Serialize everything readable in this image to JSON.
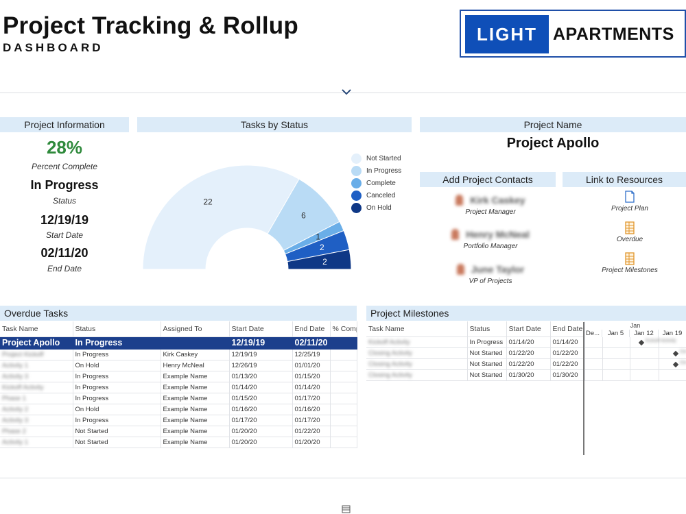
{
  "header": {
    "title": "Project Tracking & Rollup",
    "subtitle": "DASHBOARD",
    "logo_left": "LIGHT",
    "logo_right": "APARTMENTS"
  },
  "project_info": {
    "heading": "Project Information",
    "percent": "28%",
    "percent_label": "Percent Complete",
    "status": "In Progress",
    "status_label": "Status",
    "start_date": "12/19/19",
    "start_label": "Start Date",
    "end_date": "02/11/20",
    "end_label": "End Date"
  },
  "chart_data": {
    "type": "pie",
    "title": "Tasks by Status",
    "shape": "half-donut",
    "categories": [
      "Not Started",
      "In Progress",
      "Complete",
      "Canceled",
      "On Hold"
    ],
    "values": [
      22,
      6,
      1,
      2,
      2
    ],
    "colors": [
      "#e4f0fb",
      "#b9dbf5",
      "#6aaee8",
      "#1f5fc4",
      "#0f3886"
    ],
    "legend_position": "right"
  },
  "project_name": {
    "heading": "Project Name",
    "value": "Project Apollo"
  },
  "contacts": {
    "heading": "Add Project Contacts",
    "items": [
      {
        "name": "Kirk Caskey",
        "role": "Project Manager"
      },
      {
        "name": "Henry McNeal",
        "role": "Portfolio Manager"
      },
      {
        "name": "June Taylor",
        "role": "VP of Projects"
      }
    ]
  },
  "resources": {
    "heading": "Link to Resources",
    "items": [
      {
        "label": "Project Plan",
        "icon": "document-icon"
      },
      {
        "label": "Overdue",
        "icon": "spreadsheet-icon"
      },
      {
        "label": "Project Milestones",
        "icon": "spreadsheet-icon"
      }
    ]
  },
  "overdue": {
    "heading": "Overdue Tasks",
    "columns": [
      "Task Name",
      "Status",
      "Assigned To",
      "Start Date",
      "End Date",
      "% Comp"
    ],
    "summary": {
      "task": "Project Apollo",
      "status": "In Progress",
      "assigned": "",
      "start": "12/19/19",
      "end": "02/11/20"
    },
    "rows": [
      {
        "task": "Project Kickoff",
        "status": "In Progress",
        "assigned": "Kirk Caskey",
        "start": "12/19/19",
        "end": "12/25/19"
      },
      {
        "task": "Activity 1",
        "status": "On Hold",
        "assigned": "Henry McNeal",
        "start": "12/26/19",
        "end": "01/01/20"
      },
      {
        "task": "Activity 3",
        "status": "In Progress",
        "assigned": "Example Name",
        "start": "01/13/20",
        "end": "01/15/20"
      },
      {
        "task": "Kickoff Activity",
        "status": "In Progress",
        "assigned": "Example Name",
        "start": "01/14/20",
        "end": "01/14/20"
      },
      {
        "task": "Phase 1",
        "status": "In Progress",
        "assigned": "Example Name",
        "start": "01/15/20",
        "end": "01/17/20"
      },
      {
        "task": "Activity 2",
        "status": "On Hold",
        "assigned": "Example Name",
        "start": "01/16/20",
        "end": "01/16/20"
      },
      {
        "task": "Activity 3",
        "status": "In Progress",
        "assigned": "Example Name",
        "start": "01/17/20",
        "end": "01/17/20"
      },
      {
        "task": "Phase 2",
        "status": "Not Started",
        "assigned": "Example Name",
        "start": "01/20/20",
        "end": "01/22/20"
      },
      {
        "task": "Activity 1",
        "status": "Not Started",
        "assigned": "Example Name",
        "start": "01/20/20",
        "end": "01/20/20"
      }
    ]
  },
  "milestones": {
    "heading": "Project Milestones",
    "columns": [
      "Task Name",
      "Status",
      "Start Date",
      "End Date"
    ],
    "gantt_month": "Jan",
    "gantt_weeks": [
      "De...",
      "Jan 5",
      "Jan 12",
      "Jan 19"
    ],
    "rows": [
      {
        "task": "Kickoff Activity",
        "status": "In Progress",
        "start": "01/14/20",
        "end": "01/14/20",
        "bar_label": "Kickoff Activity"
      },
      {
        "task": "Closing Activity",
        "status": "Not Started",
        "start": "01/22/20",
        "end": "01/22/20",
        "bar_label": "Closing Activity"
      },
      {
        "task": "Closing Activity",
        "status": "Not Started",
        "start": "01/22/20",
        "end": "01/22/20",
        "bar_label": "Closing Activity"
      },
      {
        "task": "Closing Activity",
        "status": "Not Started",
        "start": "01/30/20",
        "end": "01/30/20",
        "bar_label": ""
      }
    ]
  }
}
